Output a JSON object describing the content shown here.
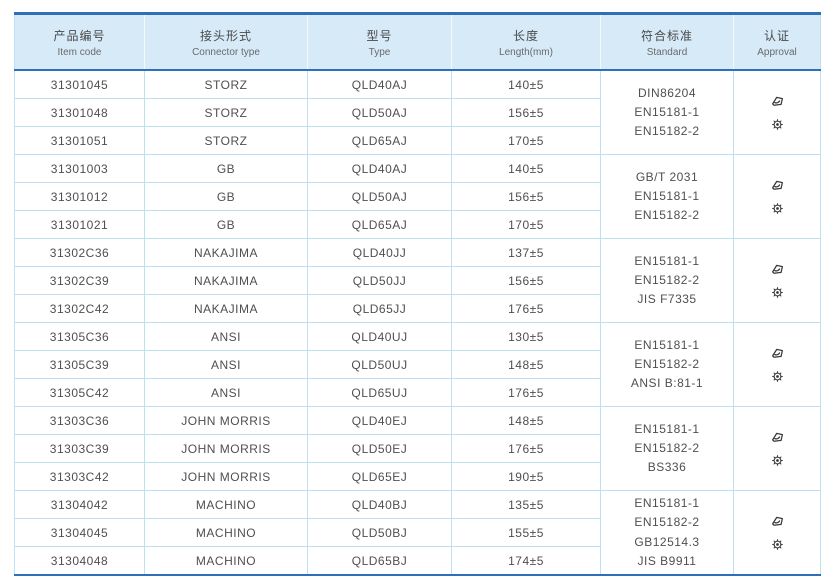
{
  "colors": {
    "accent_dark_blue": "#2e6fb7",
    "row_line_blue": "#bfdff2",
    "header_bg": "#d6eaf8",
    "text_gray": "#4f4f4f",
    "icon_gray": "#3a3a3a"
  },
  "table": {
    "columns": [
      {
        "zh": "产品编号",
        "en": "Item code"
      },
      {
        "zh": "接头形式",
        "en": "Connector type"
      },
      {
        "zh": "型号",
        "en": "Type"
      },
      {
        "zh": "长度",
        "en": "Length(mm)"
      },
      {
        "zh": "符合标准",
        "en": "Standard"
      },
      {
        "zh": "认证",
        "en": "Approval"
      }
    ],
    "groups": [
      {
        "connector_type": "STORZ",
        "rows": [
          {
            "item_code": "31301045",
            "type": "QLD40AJ",
            "length": "140±5"
          },
          {
            "item_code": "31301048",
            "type": "QLD50AJ",
            "length": "156±5"
          },
          {
            "item_code": "31301051",
            "type": "QLD65AJ",
            "length": "170±5"
          }
        ],
        "standards": [
          "DIN86204",
          "EN15181-1",
          "EN15182-2"
        ],
        "approval_icons": [
          "stamp-logo-icon",
          "rosette-seal-icon"
        ]
      },
      {
        "connector_type": "GB",
        "rows": [
          {
            "item_code": "31301003",
            "type": "QLD40AJ",
            "length": "140±5"
          },
          {
            "item_code": "31301012",
            "type": "QLD50AJ",
            "length": "156±5"
          },
          {
            "item_code": "31301021",
            "type": "QLD65AJ",
            "length": "170±5"
          }
        ],
        "standards": [
          "GB/T 2031",
          "EN15181-1",
          "EN15182-2"
        ],
        "approval_icons": [
          "stamp-logo-icon",
          "rosette-seal-icon"
        ]
      },
      {
        "connector_type": "NAKAJIMA",
        "rows": [
          {
            "item_code": "31302C36",
            "type": "QLD40JJ",
            "length": "137±5"
          },
          {
            "item_code": "31302C39",
            "type": "QLD50JJ",
            "length": "156±5"
          },
          {
            "item_code": "31302C42",
            "type": "QLD65JJ",
            "length": "176±5"
          }
        ],
        "standards": [
          "EN15181-1",
          "EN15182-2",
          "JIS F7335"
        ],
        "approval_icons": [
          "stamp-logo-icon",
          "rosette-seal-icon"
        ]
      },
      {
        "connector_type": "ANSI",
        "rows": [
          {
            "item_code": "31305C36",
            "type": "QLD40UJ",
            "length": "130±5"
          },
          {
            "item_code": "31305C39",
            "type": "QLD50UJ",
            "length": "148±5"
          },
          {
            "item_code": "31305C42",
            "type": "QLD65UJ",
            "length": "176±5"
          }
        ],
        "standards": [
          "EN15181-1",
          "EN15182-2",
          "ANSI B:81-1"
        ],
        "approval_icons": [
          "stamp-logo-icon",
          "rosette-seal-icon"
        ]
      },
      {
        "connector_type": "JOHN MORRIS",
        "rows": [
          {
            "item_code": "31303C36",
            "type": "QLD40EJ",
            "length": "148±5"
          },
          {
            "item_code": "31303C39",
            "type": "QLD50EJ",
            "length": "176±5"
          },
          {
            "item_code": "31303C42",
            "type": "QLD65EJ",
            "length": "190±5"
          }
        ],
        "standards": [
          "EN15181-1",
          "EN15182-2",
          "BS336"
        ],
        "approval_icons": [
          "stamp-logo-icon",
          "rosette-seal-icon"
        ]
      },
      {
        "connector_type": "MACHINO",
        "rows": [
          {
            "item_code": "31304042",
            "type": "QLD40BJ",
            "length": "135±5"
          },
          {
            "item_code": "31304045",
            "type": "QLD50BJ",
            "length": "155±5"
          },
          {
            "item_code": "31304048",
            "type": "QLD65BJ",
            "length": "174±5"
          }
        ],
        "standards": [
          "EN15181-1",
          "EN15182-2",
          "GB12514.3",
          "JIS B9911"
        ],
        "approval_icons": [
          "stamp-logo-icon",
          "rosette-seal-icon"
        ]
      }
    ]
  }
}
